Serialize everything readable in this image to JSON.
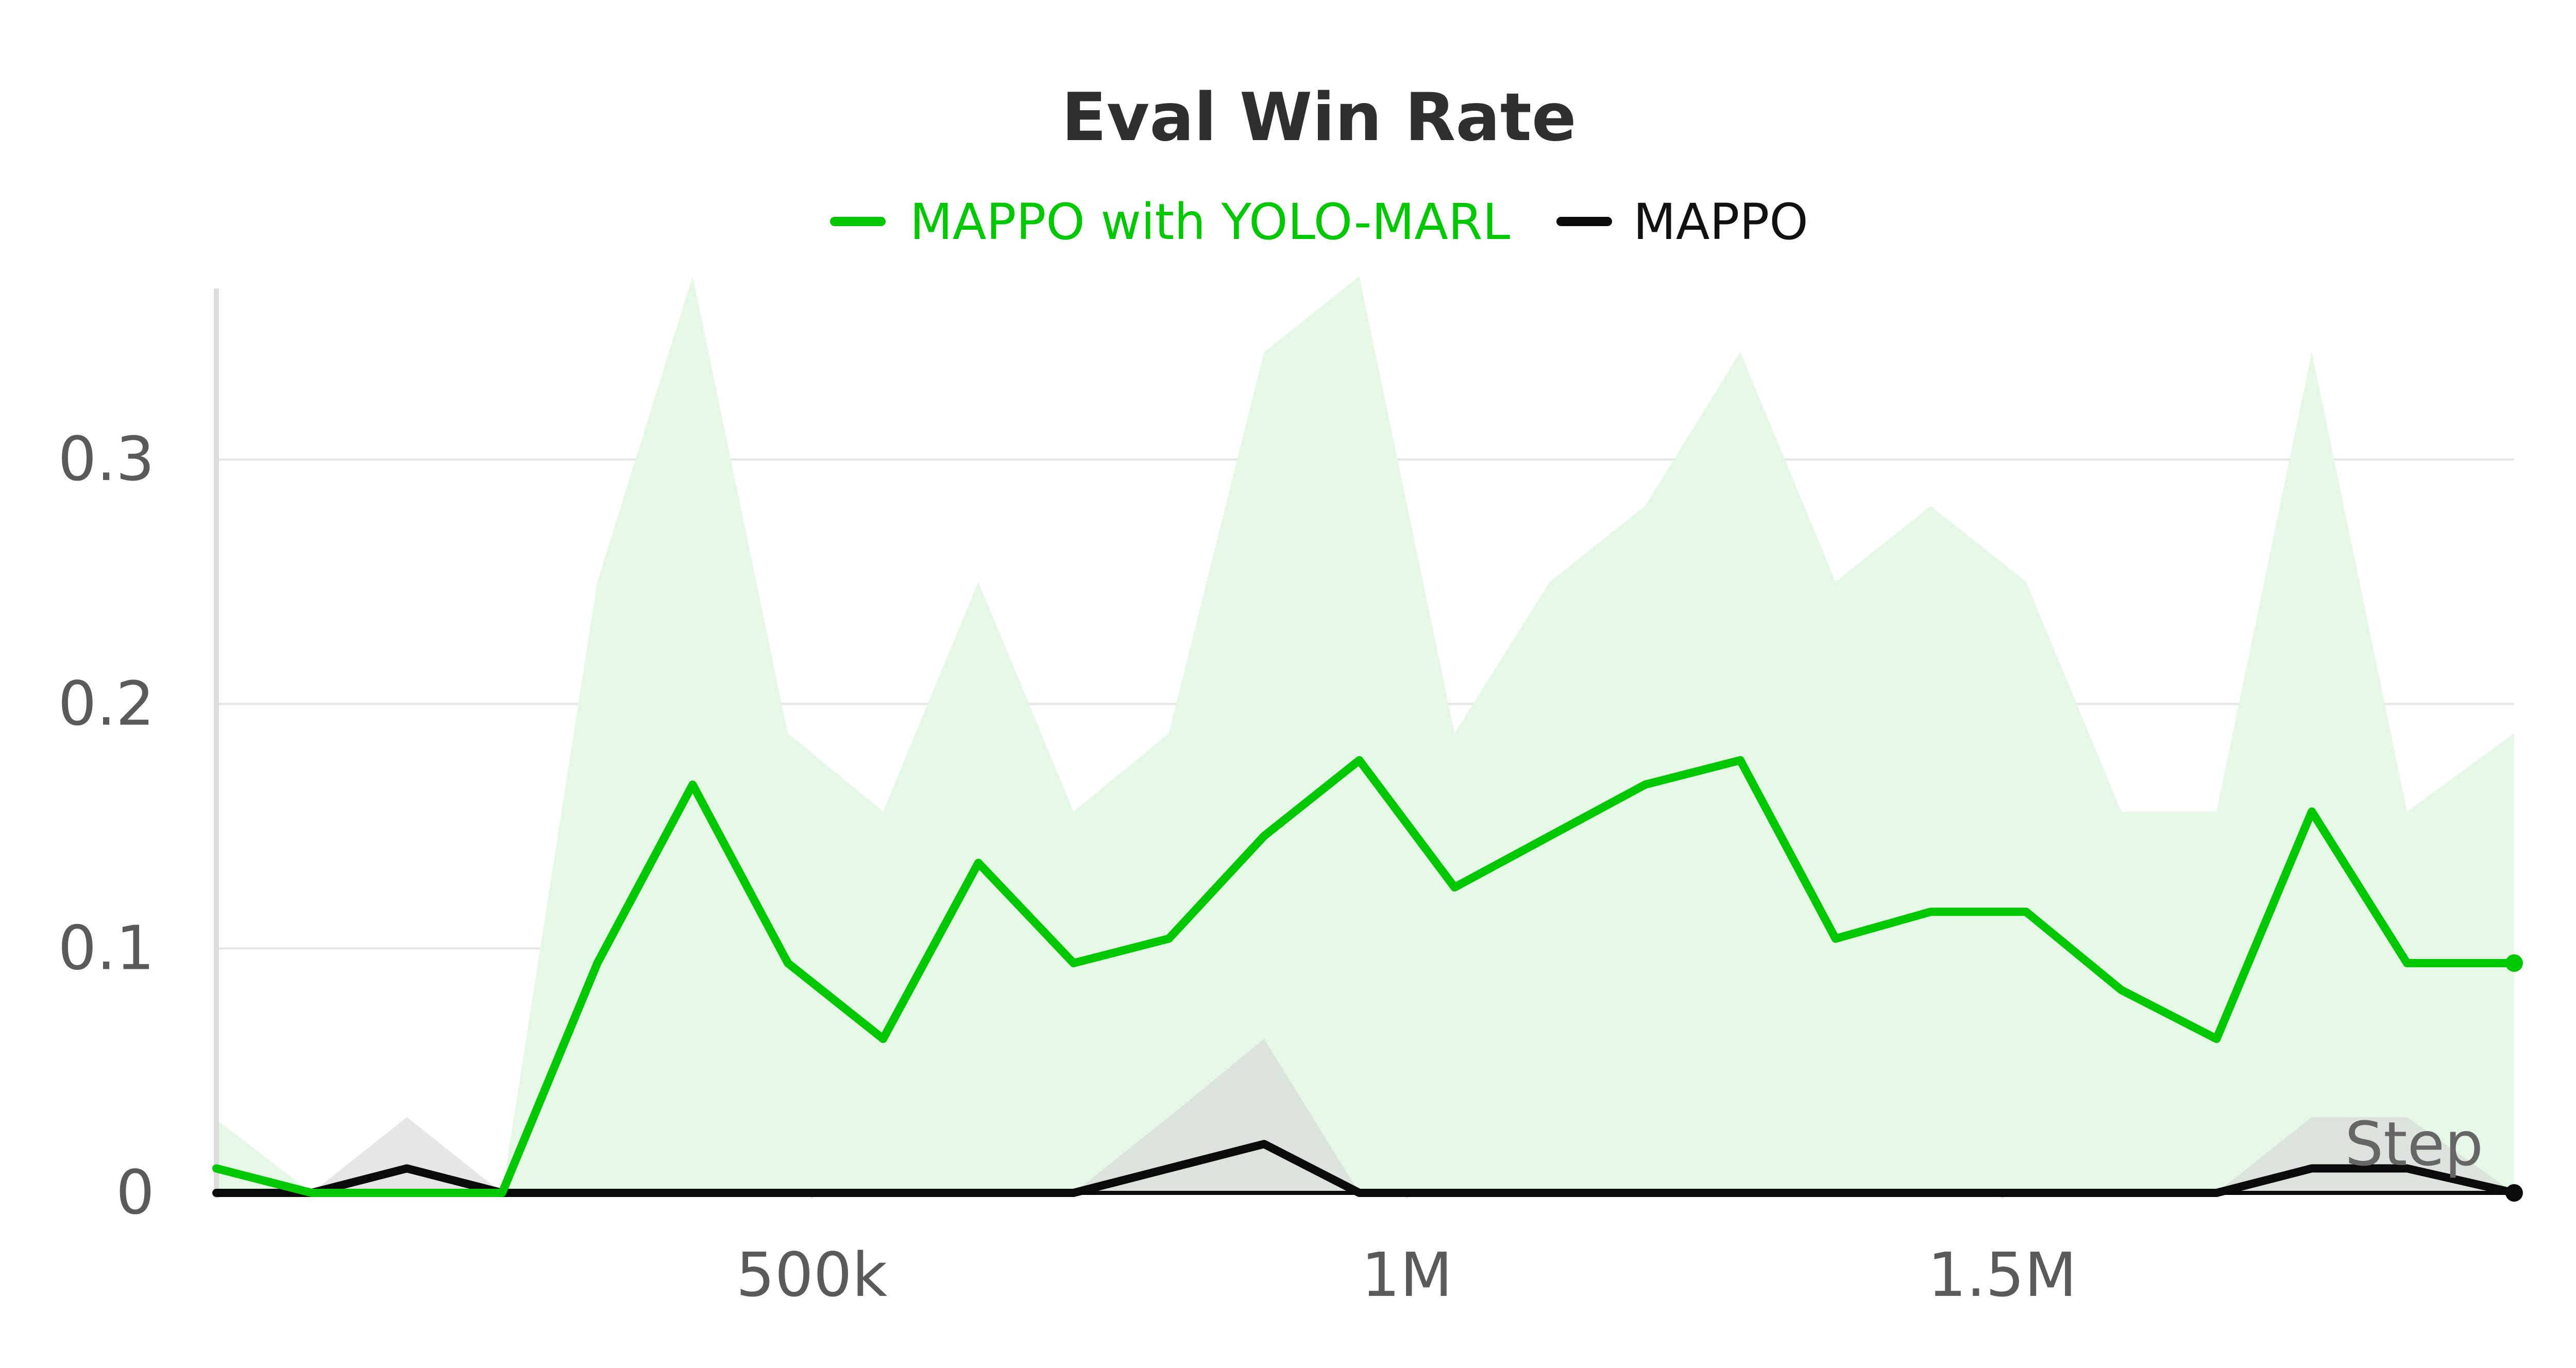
{
  "chart_data": {
    "type": "line",
    "title": "Eval Win Rate",
    "xlabel": "Step",
    "ylabel": "",
    "xlim": [
      0,
      1930000
    ],
    "ylim": [
      0,
      0.37
    ],
    "x_ticks": [
      {
        "value": 500000,
        "label": "500k"
      },
      {
        "value": 1000000,
        "label": "1M"
      },
      {
        "value": 1500000,
        "label": "1.5M"
      }
    ],
    "y_ticks": [
      {
        "value": 0,
        "label": "0"
      },
      {
        "value": 0.1,
        "label": "0.1"
      },
      {
        "value": 0.2,
        "label": "0.2"
      },
      {
        "value": 0.3,
        "label": "0.3"
      }
    ],
    "grid": true,
    "legend_position": "top-center",
    "x": [
      0,
      80000,
      160000,
      240000,
      320000,
      400000,
      480000,
      560000,
      640000,
      720000,
      800000,
      880000,
      960000,
      1040000,
      1120000,
      1200000,
      1280000,
      1360000,
      1440000,
      1520000,
      1600000,
      1680000,
      1760000,
      1840000,
      1930000
    ],
    "series": [
      {
        "name": "MAPPO with YOLO-MARL",
        "color": "#00c800",
        "band_color": "#e5f7e5",
        "values": [
          0.01,
          0.0,
          0.0,
          0.0,
          0.094,
          0.167,
          0.094,
          0.063,
          0.135,
          0.094,
          0.104,
          0.146,
          0.177,
          0.125,
          0.146,
          0.167,
          0.177,
          0.104,
          0.115,
          0.115,
          0.083,
          0.063,
          0.156,
          0.094,
          0.094
        ],
        "upper": [
          0.03,
          0.0,
          0.0,
          0.0,
          0.25,
          0.375,
          0.188,
          0.156,
          0.25,
          0.156,
          0.188,
          0.344,
          0.375,
          0.188,
          0.25,
          0.281,
          0.344,
          0.25,
          0.281,
          0.25,
          0.156,
          0.156,
          0.344,
          0.156,
          0.188
        ],
        "lower": [
          0.0,
          0.0,
          0.0,
          0.0,
          0.0,
          0.0,
          0.0,
          0.0,
          0.0,
          0.0,
          0.0,
          0.0,
          0.0,
          0.0,
          0.0,
          0.0,
          0.0,
          0.0,
          0.0,
          0.0,
          0.0,
          0.0,
          0.0,
          0.0,
          0.0
        ]
      },
      {
        "name": "MAPPO",
        "color": "#0a0a0a",
        "band_color": "#d6d6d6",
        "values": [
          0.0,
          0.0,
          0.01,
          0.0,
          0.0,
          0.0,
          0.0,
          0.0,
          0.0,
          0.0,
          0.01,
          0.02,
          0.0,
          0.0,
          0.0,
          0.0,
          0.0,
          0.0,
          0.0,
          0.0,
          0.0,
          0.0,
          0.01,
          0.01,
          0.0
        ],
        "upper": [
          0.0,
          0.0,
          0.031,
          0.0,
          0.0,
          0.0,
          0.0,
          0.0,
          0.0,
          0.0,
          0.031,
          0.063,
          0.0,
          0.0,
          0.0,
          0.0,
          0.0,
          0.0,
          0.0,
          0.0,
          0.0,
          0.0,
          0.031,
          0.031,
          0.0
        ],
        "lower": [
          0.0,
          0.0,
          0.0,
          0.0,
          0.0,
          0.0,
          0.0,
          0.0,
          0.0,
          0.0,
          0.0,
          0.0,
          0.0,
          0.0,
          0.0,
          0.0,
          0.0,
          0.0,
          0.0,
          0.0,
          0.0,
          0.0,
          0.0,
          0.0,
          0.0
        ]
      }
    ]
  }
}
